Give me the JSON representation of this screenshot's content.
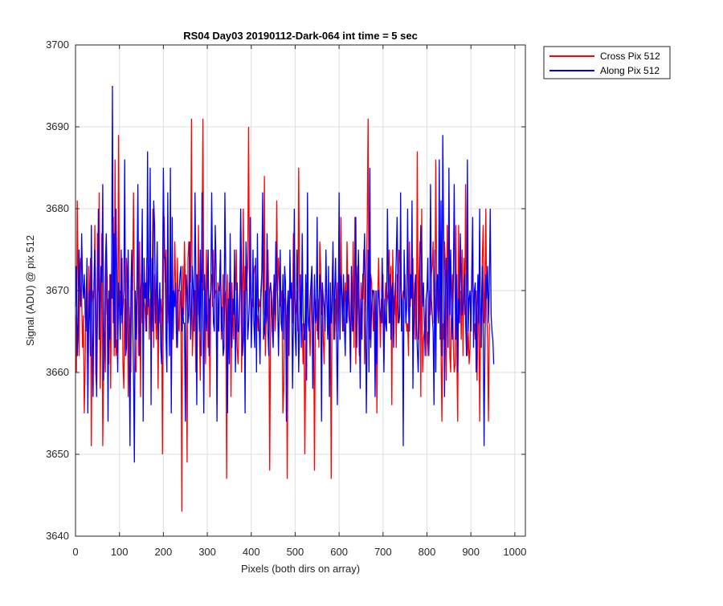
{
  "chart_data": {
    "type": "line",
    "title": "RS04 Day03 20190112-Dark-064 int time = 5 sec",
    "xlabel": "Pixels (both dirs on array)",
    "ylabel": "Signal (ADU) @ pix 512",
    "xlim": [
      0,
      1024
    ],
    "ylim": [
      3640,
      3700
    ],
    "xticks": [
      0,
      100,
      200,
      300,
      400,
      500,
      600,
      700,
      800,
      900,
      1000
    ],
    "yticks": [
      3640,
      3650,
      3660,
      3670,
      3680,
      3690,
      3700
    ],
    "grid": true,
    "legend_position": "outside-top-right",
    "x_start": 0,
    "x_step": 2,
    "series": [
      {
        "name": "Cross Pix 512",
        "color": "#ff0000",
        "values": [
          3667,
          3660,
          3681,
          3672,
          3662,
          3673,
          3674,
          3669,
          3663,
          3667,
          3655,
          3661,
          3670,
          3672,
          3658,
          3673,
          3667,
          3674,
          3651,
          3668,
          3670,
          3669,
          3678,
          3660,
          3658,
          3677,
          3670,
          3682,
          3658,
          3665,
          3677,
          3651,
          3661,
          3665,
          3660,
          3675,
          3667,
          3669,
          3661,
          3672,
          3658,
          3671,
          3669,
          3679,
          3662,
          3686,
          3662,
          3664,
          3661,
          3689,
          3668,
          3670,
          3667,
          3674,
          3661,
          3658,
          3669,
          3663,
          3674,
          3671,
          3657,
          3668,
          3665,
          3660,
          3672,
          3670,
          3682,
          3671,
          3661,
          3660,
          3667,
          3678,
          3662,
          3676,
          3657,
          3672,
          3666,
          3671,
          3669,
          3668,
          3665,
          3674,
          3667,
          3673,
          3664,
          3669,
          3666,
          3670,
          3680,
          3663,
          3672,
          3668,
          3664,
          3671,
          3658,
          3669,
          3666,
          3669,
          3667,
          3650,
          3671,
          3679,
          3671,
          3675,
          3664,
          3672,
          3666,
          3667,
          3672,
          3656,
          3669,
          3670,
          3669,
          3676,
          3670,
          3663,
          3674,
          3666,
          3665,
          3670,
          3668,
          3643,
          3673,
          3667,
          3676,
          3670,
          3665,
          3649,
          3674,
          3676,
          3672,
          3671,
          3691,
          3662,
          3666,
          3670,
          3670,
          3660,
          3672,
          3667,
          3678,
          3665,
          3659,
          3671,
          3675,
          3691,
          3670,
          3672,
          3661,
          3675,
          3668,
          3663,
          3669,
          3657,
          3671,
          3672,
          3668,
          3675,
          3669,
          3670,
          3670,
          3656,
          3671,
          3670,
          3670,
          3675,
          3664,
          3667,
          3672,
          3665,
          3669,
          3670,
          3647,
          3672,
          3663,
          3671,
          3670,
          3657,
          3671,
          3667,
          3664,
          3672,
          3670,
          3675,
          3663,
          3661,
          3665,
          3669,
          3678,
          3660,
          3667,
          3680,
          3665,
          3673,
          3670,
          3671,
          3673,
          3690,
          3670,
          3671,
          3663,
          3669,
          3668,
          3672,
          3673,
          3673,
          3666,
          3667,
          3665,
          3669,
          3668,
          3669,
          3671,
          3678,
          3667,
          3684,
          3662,
          3666,
          3667,
          3675,
          3669,
          3648,
          3666,
          3670,
          3665,
          3669,
          3671,
          3665,
          3667,
          3681,
          3670,
          3674,
          3671,
          3668,
          3669,
          3670,
          3655,
          3658,
          3669,
          3669,
          3666,
          3647,
          3669,
          3667,
          3672,
          3669,
          3670,
          3666,
          3677,
          3670,
          3667,
          3668,
          3670,
          3665,
          3685,
          3669,
          3668,
          3665,
          3666,
          3661,
          3666,
          3650,
          3662,
          3671,
          3669,
          3667,
          3666,
          3662,
          3667,
          3673,
          3666,
          3666,
          3648,
          3668,
          3669,
          3665,
          3669,
          3663,
          3676,
          3673,
          3667,
          3671,
          3664,
          3661,
          3669,
          3672,
          3669,
          3666,
          3665,
          3664,
          3668,
          3647,
          3671,
          3675,
          3666,
          3664,
          3669,
          3665,
          3671,
          3665,
          3675,
          3664,
          3679,
          3670,
          3667,
          3665,
          3668,
          3671,
          3666,
          3676,
          3670,
          3672,
          3668,
          3660,
          3671,
          3665,
          3676,
          3663,
          3679,
          3661,
          3670,
          3673,
          3667,
          3662,
          3666,
          3671,
          3669,
          3669,
          3675,
          3661,
          3666,
          3672,
          3678,
          3691,
          3667,
          3664,
          3672,
          3671,
          3668,
          3665,
          3670,
          3663,
          3670,
          3655,
          3669,
          3674,
          3668,
          3663,
          3669,
          3666,
          3672,
          3661,
          3668,
          3671,
          3668,
          3669,
          3670,
          3675,
          3666,
          3673,
          3656,
          3675,
          3669,
          3667,
          3671,
          3663,
          3672,
          3666,
          3675,
          3674,
          3672,
          3669,
          3669,
          3670,
          3669,
          3672,
          3667,
          3665,
          3666,
          3662,
          3676,
          3668,
          3671,
          3669,
          3674,
          3664,
          3671,
          3664,
          3666,
          3687,
          3664,
          3672,
          3676,
          3657,
          3680,
          3660,
          3664,
          3665,
          3666,
          3669,
          3662,
          3665,
          3663,
          3670,
          3667,
          3672,
          3673,
          3676,
          3666,
          3667,
          3686,
          3672,
          3668,
          3666,
          3669,
          3672,
          3663,
          3654,
          3666,
          3664,
          3676,
          3673,
          3659,
          3678,
          3669,
          3682,
          3662,
          3660,
          3669,
          3672,
          3663,
          3660,
          3661,
          3678,
          3662,
          3654,
          3678,
          3667,
          3670,
          3664,
          3675,
          3662,
          3674,
          3667,
          3683,
          3667,
          3662,
          3665,
          3661,
          3663,
          3669,
          3670,
          3675,
          3665,
          3666,
          3664,
          3670,
          3659,
          3666,
          3669,
          3654,
          3666,
          3663,
          3674,
          3678,
          3666,
          3670,
          3680,
          3667,
          3664,
          3654,
          3666
        ]
      },
      {
        "name": "Along Pix 512",
        "color": "#0000ff",
        "values": [
          3668,
          3673,
          3662,
          3666,
          3675,
          3670,
          3668,
          3677,
          3671,
          3669,
          3672,
          3667,
          3665,
          3674,
          3655,
          3666,
          3670,
          3662,
          3678,
          3666,
          3657,
          3671,
          3675,
          3669,
          3657,
          3667,
          3680,
          3664,
          3668,
          3673,
          3671,
          3683,
          3659,
          3665,
          3673,
          3677,
          3671,
          3654,
          3670,
          3664,
          3672,
          3669,
          3695,
          3666,
          3677,
          3663,
          3680,
          3672,
          3660,
          3671,
          3668,
          3664,
          3675,
          3666,
          3668,
          3670,
          3686,
          3662,
          3663,
          3670,
          3675,
          3664,
          3651,
          3670,
          3675,
          3667,
          3660,
          3649,
          3670,
          3664,
          3672,
          3683,
          3666,
          3662,
          3670,
          3671,
          3680,
          3654,
          3674,
          3669,
          3671,
          3665,
          3687,
          3668,
          3671,
          3685,
          3656,
          3674,
          3665,
          3681,
          3678,
          3666,
          3670,
          3676,
          3664,
          3668,
          3671,
          3663,
          3661,
          3670,
          3685,
          3674,
          3674,
          3664,
          3660,
          3682,
          3668,
          3662,
          3685,
          3655,
          3679,
          3664,
          3670,
          3668,
          3671,
          3665,
          3663,
          3670,
          3670,
          3672,
          3673,
          3665,
          3668,
          3666,
          3666,
          3654,
          3672,
          3670,
          3666,
          3667,
          3676,
          3664,
          3668,
          3673,
          3670,
          3665,
          3682,
          3672,
          3656,
          3672,
          3670,
          3665,
          3675,
          3662,
          3682,
          3667,
          3655,
          3672,
          3667,
          3665,
          3670,
          3675,
          3662,
          3669,
          3670,
          3682,
          3671,
          3666,
          3665,
          3678,
          3673,
          3654,
          3670,
          3665,
          3671,
          3675,
          3665,
          3668,
          3662,
          3663,
          3682,
          3672,
          3665,
          3655,
          3669,
          3661,
          3677,
          3666,
          3663,
          3669,
          3667,
          3675,
          3660,
          3667,
          3671,
          3665,
          3665,
          3670,
          3680,
          3672,
          3662,
          3664,
          3670,
          3655,
          3676,
          3672,
          3664,
          3666,
          3669,
          3679,
          3663,
          3667,
          3675,
          3666,
          3663,
          3674,
          3660,
          3677,
          3668,
          3666,
          3661,
          3670,
          3672,
          3682,
          3664,
          3665,
          3670,
          3666,
          3677,
          3665,
          3662,
          3670,
          3671,
          3669,
          3665,
          3663,
          3672,
          3667,
          3676,
          3672,
          3669,
          3662,
          3668,
          3675,
          3666,
          3665,
          3672,
          3664,
          3673,
          3671,
          3654,
          3668,
          3670,
          3662,
          3675,
          3669,
          3671,
          3658,
          3666,
          3680,
          3665,
          3662,
          3675,
          3670,
          3660,
          3666,
          3672,
          3663,
          3677,
          3667,
          3664,
          3664,
          3672,
          3659,
          3682,
          3666,
          3665,
          3669,
          3671,
          3673,
          3658,
          3666,
          3672,
          3666,
          3667,
          3679,
          3664,
          3667,
          3672,
          3670,
          3654,
          3671,
          3669,
          3668,
          3665,
          3675,
          3669,
          3664,
          3673,
          3657,
          3671,
          3666,
          3668,
          3676,
          3664,
          3670,
          3674,
          3665,
          3656,
          3667,
          3682,
          3664,
          3672,
          3670,
          3665,
          3672,
          3666,
          3662,
          3670,
          3666,
          3672,
          3667,
          3666,
          3660,
          3673,
          3667,
          3665,
          3669,
          3672,
          3679,
          3663,
          3670,
          3675,
          3667,
          3658,
          3669,
          3664,
          3672,
          3672,
          3677,
          3668,
          3655,
          3666,
          3675,
          3660,
          3685,
          3663,
          3668,
          3670,
          3670,
          3668,
          3657,
          3670,
          3661,
          3670,
          3670,
          3668,
          3667,
          3666,
          3674,
          3668,
          3660,
          3669,
          3666,
          3665,
          3680,
          3671,
          3666,
          3672,
          3664,
          3670,
          3671,
          3663,
          3669,
          3670,
          3674,
          3679,
          3670,
          3666,
          3667,
          3682,
          3665,
          3669,
          3651,
          3675,
          3670,
          3666,
          3668,
          3680,
          3668,
          3665,
          3672,
          3669,
          3681,
          3658,
          3667,
          3670,
          3672,
          3666,
          3663,
          3660,
          3665,
          3672,
          3678,
          3674,
          3668,
          3671,
          3666,
          3662,
          3669,
          3670,
          3674,
          3662,
          3666,
          3683,
          3669,
          3667,
          3665,
          3656,
          3675,
          3660,
          3671,
          3672,
          3666,
          3686,
          3664,
          3681,
          3662,
          3689,
          3676,
          3657,
          3669,
          3674,
          3670,
          3663,
          3685,
          3667,
          3675,
          3667,
          3664,
          3671,
          3683,
          3670,
          3664,
          3672,
          3660,
          3669,
          3666,
          3677,
          3671,
          3667,
          3668,
          3669,
          3672,
          3666,
          3662,
          3686,
          3665,
          3669,
          3670,
          3665,
          3672,
          3679,
          3663,
          3670,
          3671,
          3660,
          3667,
          3672,
          3666,
          3680,
          3663,
          3668,
          3673,
          3665,
          3651,
          3664,
          3672,
          3669,
          3673,
          3666,
          3671,
          3680,
          3667,
          3665,
          3664,
          3661
        ]
      }
    ]
  }
}
